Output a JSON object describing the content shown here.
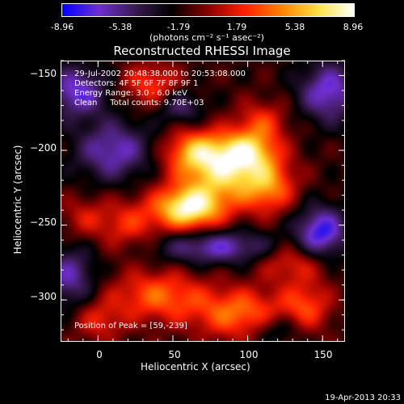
{
  "colorbar": {
    "ticks": [
      "-8.96",
      "-5.38",
      "-1.79",
      "1.79",
      "5.38",
      "8.96"
    ],
    "units": "(photons cm⁻² s⁻¹ asec⁻²)",
    "range": [
      -8.96,
      8.96
    ],
    "colors": [
      "#0000ff",
      "#6f2fd1",
      "#3a1a52",
      "#000000",
      "#8a0000",
      "#ff2000",
      "#ff8000",
      "#ffe040",
      "#ffffff"
    ]
  },
  "chart_data": {
    "type": "heatmap",
    "title": "Reconstructed RHESSI Image",
    "xlabel": "Heliocentric X (arcsec)",
    "ylabel": "Heliocentric Y (arcsec)",
    "xlim": [
      -25,
      165
    ],
    "ylim": [
      -328,
      -140
    ],
    "xticks": [
      "0",
      "50",
      "100",
      "150"
    ],
    "xtick_values": [
      0,
      50,
      100,
      150
    ],
    "yticks": [
      "−150",
      "−200",
      "−250",
      "−300"
    ],
    "ytick_values": [
      -150,
      -200,
      -250,
      -300
    ],
    "annotations": [
      "29-Jul-2002 20:48:38.000 to 20:53:08.000",
      "Detectors: 4F 5F 6F 7F 8F 9F 1",
      "Energy Range: 3.0 - 6.0 keV",
      "Clean     Total counts: 9.70E+03"
    ],
    "peak_label": "Position of Peak = [59,-239]",
    "peak": [
      59,
      -239
    ],
    "sources": [
      {
        "x": 60,
        "y": -239,
        "sx": 16,
        "sy": 10,
        "amp": 9.5
      },
      {
        "x": 85,
        "y": -215,
        "sx": 22,
        "sy": 15,
        "amp": 7.5
      },
      {
        "x": 100,
        "y": -200,
        "sx": 14,
        "sy": 10,
        "amp": 6.0
      },
      {
        "x": 65,
        "y": -200,
        "sx": 14,
        "sy": 10,
        "amp": 5.5
      },
      {
        "x": 115,
        "y": -225,
        "sx": 12,
        "sy": 12,
        "amp": 4.5
      },
      {
        "x": 20,
        "y": -250,
        "sx": 14,
        "sy": 12,
        "amp": 3.5
      },
      {
        "x": -10,
        "y": -245,
        "sx": 12,
        "sy": 10,
        "amp": 2.5
      },
      {
        "x": 35,
        "y": -155,
        "sx": 14,
        "sy": 10,
        "amp": 4.0
      },
      {
        "x": 110,
        "y": -180,
        "sx": 12,
        "sy": 10,
        "amp": 3.5
      },
      {
        "x": 40,
        "y": -298,
        "sx": 22,
        "sy": 12,
        "amp": 5.0
      },
      {
        "x": 95,
        "y": -310,
        "sx": 22,
        "sy": 12,
        "amp": 5.5
      },
      {
        "x": 130,
        "y": -275,
        "sx": 16,
        "sy": 10,
        "amp": 3.5
      },
      {
        "x": 140,
        "y": -305,
        "sx": 12,
        "sy": 12,
        "amp": 4.0
      },
      {
        "x": 0,
        "y": -315,
        "sx": 12,
        "sy": 10,
        "amp": 3.0
      },
      {
        "x": -15,
        "y": -160,
        "sx": 14,
        "sy": 12,
        "amp": -5.5
      },
      {
        "x": 10,
        "y": -200,
        "sx": 18,
        "sy": 14,
        "amp": -5.0
      },
      {
        "x": 155,
        "y": -160,
        "sx": 14,
        "sy": 14,
        "amp": -5.5
      },
      {
        "x": 150,
        "y": -255,
        "sx": 12,
        "sy": 12,
        "amp": -6.5
      },
      {
        "x": 80,
        "y": -265,
        "sx": 28,
        "sy": 8,
        "amp": -5.0
      },
      {
        "x": -20,
        "y": -285,
        "sx": 12,
        "sy": 14,
        "amp": -4.5
      },
      {
        "x": 55,
        "y": -170,
        "sx": 10,
        "sy": 8,
        "amp": -3.5
      },
      {
        "x": 120,
        "y": -320,
        "sx": 12,
        "sy": 8,
        "amp": -3.0
      }
    ]
  },
  "footer": {
    "timestamp": "19-Apr-2013 20:33"
  }
}
